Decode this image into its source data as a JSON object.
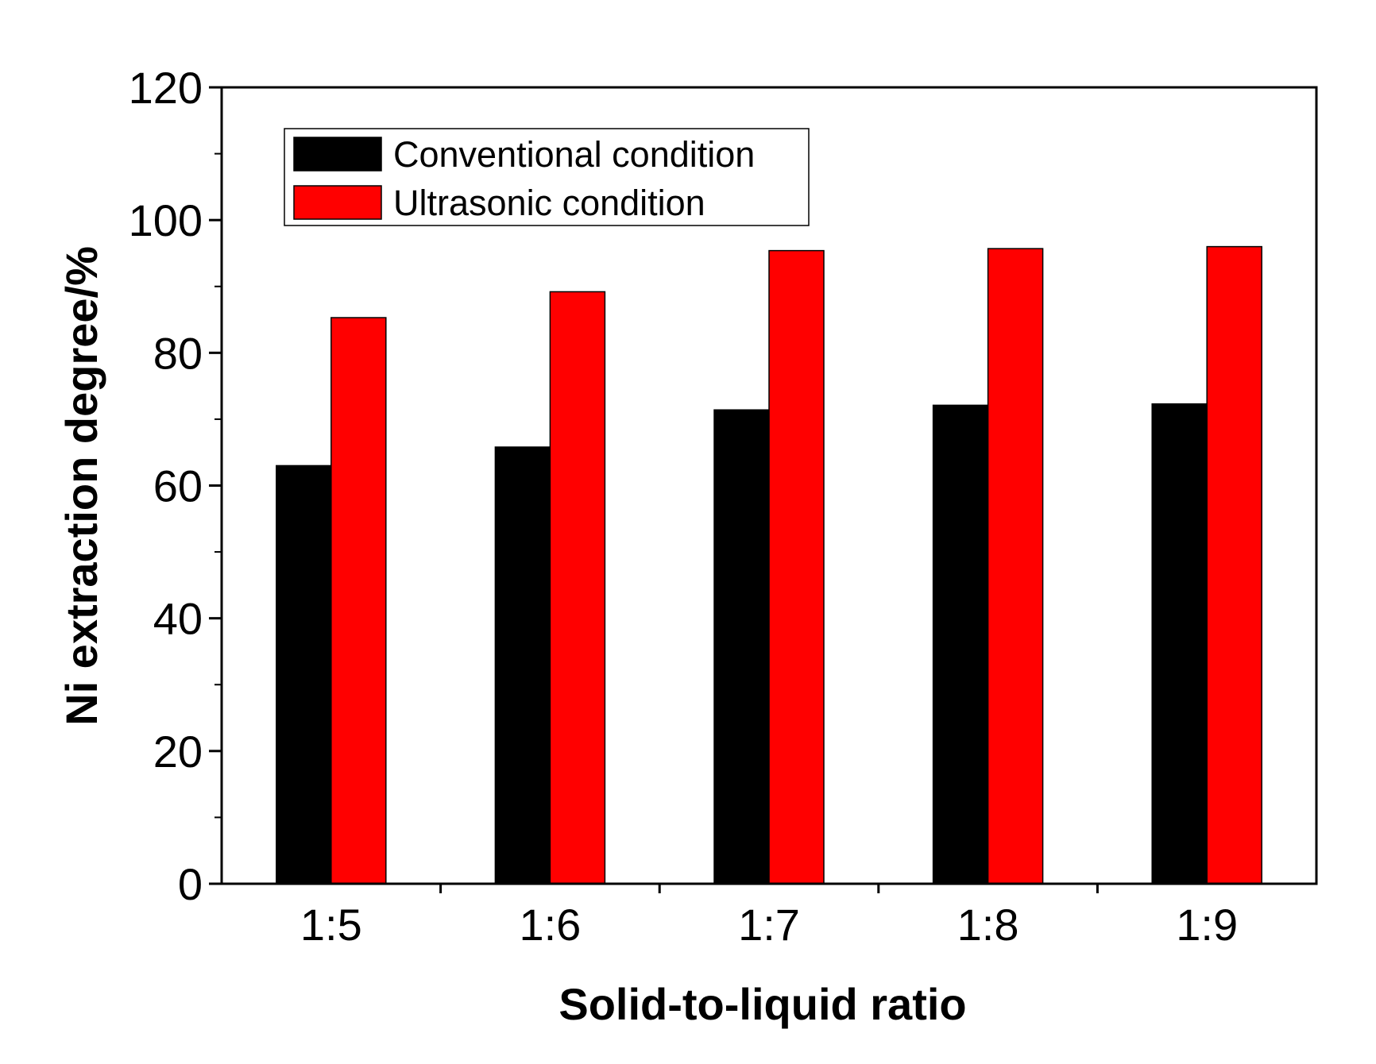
{
  "chart_data": {
    "type": "bar",
    "categories": [
      "1:5",
      "1:6",
      "1:7",
      "1:8",
      "1:9"
    ],
    "series": [
      {
        "name": "Conventional condition",
        "color": "#000000",
        "values": [
          63.0,
          65.8,
          71.4,
          72.1,
          72.3
        ]
      },
      {
        "name": "Ultrasonic condition",
        "color": "#ff0000",
        "values": [
          85.3,
          89.2,
          95.4,
          95.7,
          96.0
        ]
      }
    ],
    "xlabel": "Solid-to-liquid ratio",
    "ylabel": "Ni extraction degree/%",
    "ylim": [
      0,
      120
    ],
    "yticks": [
      "0",
      "20",
      "40",
      "60",
      "80",
      "100",
      "120"
    ],
    "legend_position": "top-left",
    "grid": false
  }
}
